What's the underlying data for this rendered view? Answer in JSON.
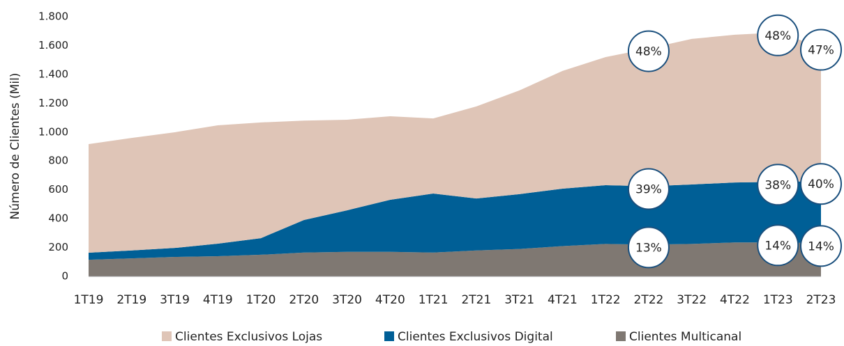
{
  "chart_data": {
    "type": "stacked_area",
    "ylabel": "Número de Clientes (Mil)",
    "categories": [
      "1T19",
      "2T19",
      "3T19",
      "4T19",
      "1T20",
      "2T20",
      "3T20",
      "4T20",
      "1T21",
      "2T21",
      "3T21",
      "4T21",
      "1T22",
      "2T22",
      "3T22",
      "4T22",
      "1T23",
      "2T23"
    ],
    "series": [
      {
        "name": "Clientes Multicanal",
        "color": "#7f7872",
        "values": [
          115,
          125,
          135,
          140,
          150,
          165,
          170,
          170,
          165,
          180,
          190,
          210,
          225,
          220,
          225,
          235,
          235,
          230
        ]
      },
      {
        "name": "Clientes Exclusivos Digital",
        "color": "#005f96",
        "values": [
          49,
          55,
          62,
          87,
          115,
          226,
          288,
          361,
          409,
          360,
          380,
          398,
          407,
          405,
          412,
          416,
          420,
          430
        ]
      },
      {
        "name": "Clientes Exclusivos Lojas",
        "color": "#dfc5b7",
        "values": [
          753,
          780,
          802,
          820,
          802,
          689,
          628,
          579,
          521,
          638,
          719,
          816,
          888,
          955,
          1009,
          1024,
          1035,
          930
        ]
      }
    ],
    "legend_order": [
      "Clientes Exclusivos Lojas",
      "Clientes Exclusivos Digital",
      "Clientes Multicanal"
    ],
    "annotations": [
      {
        "category": "2T22",
        "series": "Clientes Exclusivos Lojas",
        "label": "48%"
      },
      {
        "category": "1T23",
        "series": "Clientes Exclusivos Lojas",
        "label": "48%"
      },
      {
        "category": "2T23",
        "series": "Clientes Exclusivos Lojas",
        "label": "47%"
      },
      {
        "category": "2T22",
        "series": "Clientes Exclusivos Digital",
        "label": "39%"
      },
      {
        "category": "1T23",
        "series": "Clientes Exclusivos Digital",
        "label": "38%"
      },
      {
        "category": "2T23",
        "series": "Clientes Exclusivos Digital",
        "label": "40%"
      },
      {
        "category": "2T22",
        "series": "Clientes Multicanal",
        "label": "13%"
      },
      {
        "category": "1T23",
        "series": "Clientes Multicanal",
        "label": "14%"
      },
      {
        "category": "2T23",
        "series": "Clientes Multicanal",
        "label": "14%"
      }
    ],
    "ylim": [
      0,
      1800
    ],
    "yticks": [
      0,
      200,
      400,
      600,
      800,
      {
        "value": 1000,
        "label": "1.000"
      },
      {
        "value": 1200,
        "label": "1.200"
      },
      {
        "value": 1400,
        "label": "1.400"
      },
      {
        "value": 1600,
        "label": "1.600"
      },
      {
        "value": 1800,
        "label": "1.800"
      }
    ],
    "legend": "bottom"
  }
}
